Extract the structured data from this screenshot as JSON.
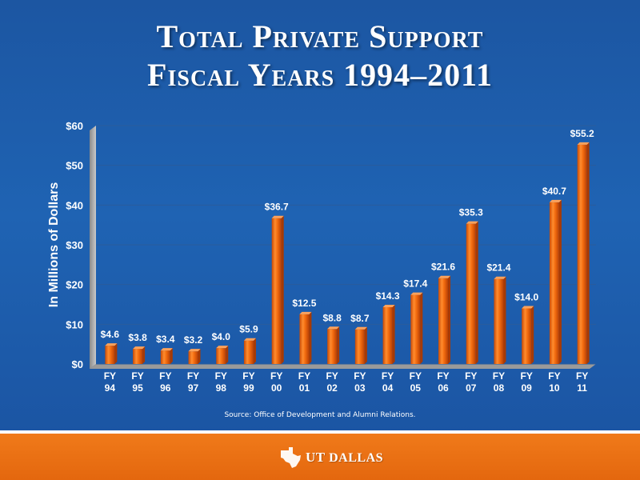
{
  "header": {
    "title_line1": "Total Private Support",
    "title_line2": "Fiscal Years 1994–2011"
  },
  "chart_data": {
    "type": "bar",
    "title": "Total Private Support Fiscal Years 1994–2011",
    "ylabel": "In Millions of Dollars",
    "xlabel": "",
    "ylim": [
      0,
      60
    ],
    "yticks": [
      "$0",
      "$10",
      "$20",
      "$30",
      "$40",
      "$50",
      "$60"
    ],
    "ytick_values": [
      0,
      10,
      20,
      30,
      40,
      50,
      60
    ],
    "grid": true,
    "bar_color": "#f26b0f",
    "categories": [
      [
        "FY",
        "94"
      ],
      [
        "FY",
        "95"
      ],
      [
        "FY",
        "96"
      ],
      [
        "FY",
        "97"
      ],
      [
        "FY",
        "98"
      ],
      [
        "FY",
        "99"
      ],
      [
        "FY",
        "00"
      ],
      [
        "FY",
        "01"
      ],
      [
        "FY",
        "02"
      ],
      [
        "FY",
        "03"
      ],
      [
        "FY",
        "04"
      ],
      [
        "FY",
        "05"
      ],
      [
        "FY",
        "06"
      ],
      [
        "FY",
        "07"
      ],
      [
        "FY",
        "08"
      ],
      [
        "FY",
        "09"
      ],
      [
        "FY",
        "10"
      ],
      [
        "FY",
        "11"
      ]
    ],
    "values": [
      4.6,
      3.8,
      3.4,
      3.2,
      4.0,
      5.9,
      36.7,
      12.5,
      8.8,
      8.7,
      14.3,
      17.4,
      21.6,
      35.3,
      21.4,
      14.0,
      40.7,
      55.2
    ],
    "data_labels": [
      "$4.6",
      "$3.8",
      "$3.4",
      "$3.2",
      "$4.0",
      "$5.9",
      "$36.7",
      "$12.5",
      "$8.8",
      "$8.7",
      "$14.3",
      "$17.4",
      "$21.6",
      "$35.3",
      "$21.4",
      "$14.0",
      "$40.7",
      "$55.2"
    ]
  },
  "source_note": "Source: Office of Development and Alumni Relations.",
  "footer": {
    "logo_ut": "UT",
    "logo_name": "DALLAS"
  },
  "colors": {
    "background": "#1f5fae",
    "bar": "#f26b0f",
    "footer": "#e96d12"
  }
}
